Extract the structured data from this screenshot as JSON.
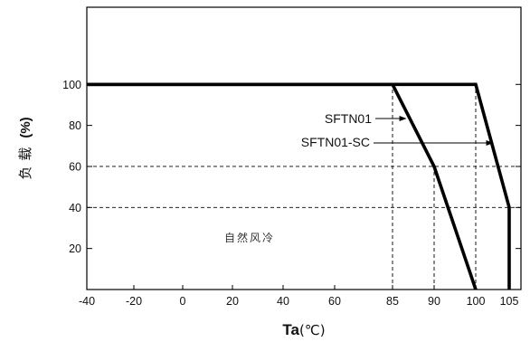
{
  "chart_data": {
    "type": "line",
    "title": "",
    "xlabel": "Ta",
    "xlabel_unit": "(℃)",
    "ylabel": "负载",
    "ylabel_unit": "(%)",
    "x_ticks": [
      -40,
      -20,
      0,
      20,
      40,
      60,
      85,
      90,
      100,
      105
    ],
    "x_tick_labels": [
      "-40",
      "-20",
      "0",
      "20",
      "40",
      "60",
      "85",
      "90",
      "100",
      "105"
    ],
    "y_ticks": [
      20,
      40,
      60,
      80,
      100
    ],
    "y_tick_labels": [
      "20",
      "40",
      "60",
      "80",
      "100"
    ],
    "ylim": [
      0,
      120
    ],
    "grid": false,
    "series": [
      {
        "name": "SFTN01",
        "x": [
          -40,
          85,
          90,
          100
        ],
        "y": [
          100,
          100,
          60,
          0
        ]
      },
      {
        "name": "SFTN01-SC",
        "x": [
          -40,
          100,
          105,
          105
        ],
        "y": [
          100,
          100,
          40,
          0
        ]
      }
    ],
    "reference_lines": [
      {
        "orientation": "vertical",
        "x": 85,
        "y_from": 0,
        "y_to": 100
      },
      {
        "orientation": "vertical",
        "x": 90,
        "y_from": 0,
        "y_to": 60
      },
      {
        "orientation": "vertical",
        "x": 100,
        "y_from": 0,
        "y_to": 100
      },
      {
        "orientation": "horizontal",
        "y": 60,
        "x_from": -40,
        "x_to": 90
      },
      {
        "orientation": "horizontal",
        "y": 40,
        "x_from": -40,
        "x_to": 105
      }
    ],
    "annotations": [
      {
        "text": "SFTN01",
        "target_series": "SFTN01",
        "target_x": 86.8,
        "target_y": 85.5
      },
      {
        "text": "SFTN01-SC",
        "target_series": "SFTN01-SC",
        "target_x": 102.5,
        "target_y": 70
      },
      {
        "text": "自然风冷",
        "region": "below-curve"
      }
    ]
  }
}
